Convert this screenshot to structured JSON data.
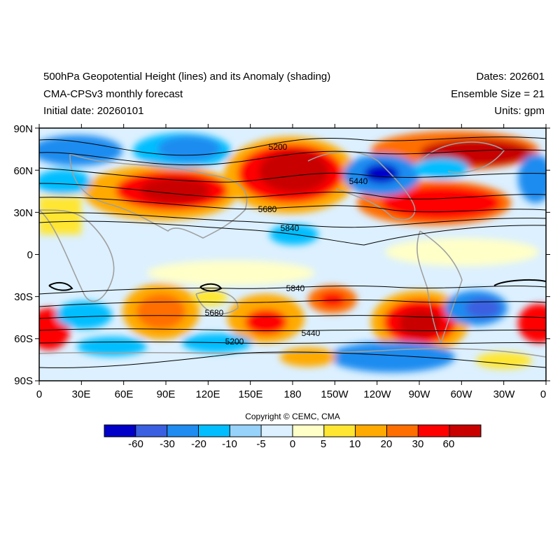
{
  "header": {
    "title": "500hPa Geopotential Height (lines) and its Anomaly (shading)",
    "model": "CMA-CPSv3 monthly forecast",
    "initial_date": "Initial date: 20260101",
    "dates": "Dates: 202601",
    "ensemble": "Ensemble Size = 21",
    "units": "Units: gpm"
  },
  "axes": {
    "lat_labels": [
      "90N",
      "60N",
      "30N",
      "0",
      "30S",
      "60S",
      "90S"
    ],
    "lon_labels": [
      "0",
      "30E",
      "60E",
      "90E",
      "120E",
      "150E",
      "180",
      "150W",
      "120W",
      "90W",
      "60W",
      "30W",
      "0"
    ]
  },
  "contour_labels": [
    "5200",
    "5440",
    "5680",
    "5840",
    "5840",
    "5680",
    "5440",
    "5200"
  ],
  "copyright": "Copyright © CEMC, CMA",
  "colorbar": {
    "colors": [
      "#0000c8",
      "#3a5fe0",
      "#1e8cf0",
      "#00beff",
      "#96d2fa",
      "#dcf0ff",
      "#ffffc8",
      "#ffe632",
      "#ffaa00",
      "#ff6e00",
      "#ff0000",
      "#c80000"
    ],
    "labels": [
      "-60",
      "-30",
      "-20",
      "-10",
      "-5",
      "0",
      "5",
      "10",
      "20",
      "30",
      "60"
    ]
  }
}
